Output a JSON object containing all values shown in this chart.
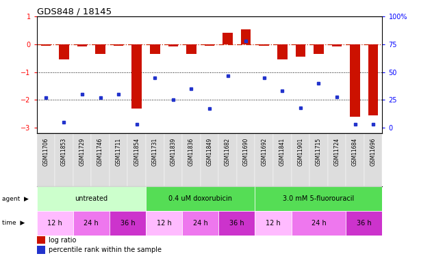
{
  "title": "GDS848 / 18145",
  "samples": [
    "GSM11706",
    "GSM11853",
    "GSM11729",
    "GSM11746",
    "GSM11711",
    "GSM11854",
    "GSM11731",
    "GSM11839",
    "GSM11836",
    "GSM11849",
    "GSM11682",
    "GSM11690",
    "GSM11692",
    "GSM11841",
    "GSM11901",
    "GSM11715",
    "GSM11724",
    "GSM11684",
    "GSM11696"
  ],
  "log_ratio": [
    -0.05,
    -0.55,
    -0.07,
    -0.35,
    -0.04,
    -2.3,
    -0.35,
    -0.07,
    -0.35,
    -0.04,
    0.42,
    0.55,
    -0.05,
    -0.55,
    -0.45,
    -0.35,
    -0.07,
    -2.6,
    -2.55
  ],
  "percentile_rank": [
    27,
    5,
    30,
    27,
    30,
    3,
    45,
    25,
    35,
    17,
    47,
    78,
    45,
    33,
    18,
    40,
    28,
    3,
    3
  ],
  "agent_groups": [
    {
      "label": "untreated",
      "start": 0,
      "end": 6,
      "color": "#ccffcc"
    },
    {
      "label": "0.4 uM doxorubicin",
      "start": 6,
      "end": 12,
      "color": "#55dd55"
    },
    {
      "label": "3.0 mM 5-fluorouracil",
      "start": 12,
      "end": 19,
      "color": "#55dd55"
    }
  ],
  "time_groups": [
    {
      "label": "12 h",
      "start": 0,
      "end": 2,
      "color": "#ffbbff"
    },
    {
      "label": "24 h",
      "start": 2,
      "end": 4,
      "color": "#ee77ee"
    },
    {
      "label": "36 h",
      "start": 4,
      "end": 6,
      "color": "#cc33cc"
    },
    {
      "label": "12 h",
      "start": 6,
      "end": 8,
      "color": "#ffbbff"
    },
    {
      "label": "24 h",
      "start": 8,
      "end": 10,
      "color": "#ee77ee"
    },
    {
      "label": "36 h",
      "start": 10,
      "end": 12,
      "color": "#cc33cc"
    },
    {
      "label": "12 h",
      "start": 12,
      "end": 14,
      "color": "#ffbbff"
    },
    {
      "label": "24 h",
      "start": 14,
      "end": 17,
      "color": "#ee77ee"
    },
    {
      "label": "36 h",
      "start": 17,
      "end": 19,
      "color": "#cc33cc"
    }
  ],
  "ylim": [
    -3.2,
    1.0
  ],
  "yticks": [
    1,
    0,
    -1,
    -2,
    -3
  ],
  "y2ticks": [
    0,
    25,
    50,
    75,
    100
  ],
  "bar_color": "#cc1100",
  "dot_color": "#2233cc",
  "zero_line_color": "#cc2200",
  "bg_color": "#ffffff",
  "sample_bg": "#dddddd",
  "label_fontsize": 5.5
}
